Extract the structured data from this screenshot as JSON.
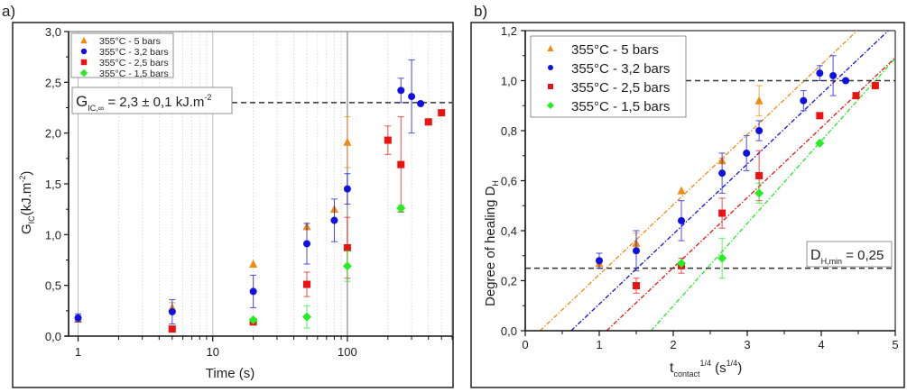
{
  "chart_data": [
    {
      "panel_label": "a)",
      "type": "scatter",
      "title": "",
      "xlabel": "Time (s)",
      "ylabel_main": "G",
      "ylabel_sub": "IC",
      "ylabel_rest": "(kJ.m",
      "ylabel_sup": "-2",
      "ylabel_end": ")",
      "xscale": "log",
      "xlim": [
        0.9,
        600
      ],
      "ylim": [
        0,
        3.0
      ],
      "xticks": [
        1,
        10,
        100
      ],
      "xtick_labels": [
        "1",
        "10",
        "100"
      ],
      "yticks": [
        0,
        0.5,
        1.0,
        1.5,
        2.0,
        2.5,
        3.0
      ],
      "ytick_labels": [
        "0,0",
        "0,5",
        "1,0",
        "1,5",
        "2,0",
        "2,5",
        "3,0"
      ],
      "grid": true,
      "legend_position": "top-left",
      "reference_line": {
        "y": 2.3,
        "label_main": "G",
        "label_sub": "IC,∞",
        "label_rest": " = 2,3 ± 0,1 kJ.m",
        "label_sup": "-2"
      },
      "series": [
        {
          "name": "355°C - 5 bars",
          "marker": "triangle",
          "color": "#f28a12",
          "points": [
            [
              1,
              0.17,
              0.02
            ],
            [
              5,
              0.28,
              0.05
            ],
            [
              20,
              0.71,
              0
            ],
            [
              50,
              1.08,
              0.03
            ],
            [
              80,
              1.25,
              0
            ],
            [
              100,
              1.91,
              0.25
            ]
          ]
        },
        {
          "name": "355°C - 3,2 bars",
          "marker": "circle",
          "color": "#1010e0",
          "points": [
            [
              1,
              0.18,
              0.04
            ],
            [
              5,
              0.24,
              0.12
            ],
            [
              20,
              0.44,
              0.16
            ],
            [
              50,
              0.91,
              0.2
            ],
            [
              80,
              1.14,
              0.21
            ],
            [
              100,
              1.45,
              0.15
            ],
            [
              250,
              2.42,
              0.12
            ],
            [
              300,
              2.36,
              0.36
            ],
            [
              350,
              2.29,
              0
            ]
          ]
        },
        {
          "name": "355°C - 2,5 bars",
          "marker": "square",
          "color": "#ee1111",
          "points": [
            [
              5,
              0.07,
              0
            ],
            [
              20,
              0.14,
              0
            ],
            [
              50,
              0.51,
              0.12
            ],
            [
              100,
              0.87,
              0.3
            ],
            [
              200,
              1.93,
              0.14
            ],
            [
              250,
              1.69,
              0.47
            ],
            [
              400,
              2.11,
              0
            ],
            [
              500,
              2.2,
              0
            ]
          ]
        },
        {
          "name": "355°C - 1,5 bars",
          "marker": "diamond",
          "color": "#22ee22",
          "points": [
            [
              20,
              0.16,
              0
            ],
            [
              50,
              0.19,
              0.11
            ],
            [
              100,
              0.69,
              0.15
            ],
            [
              250,
              1.26,
              0.03
            ]
          ]
        }
      ]
    },
    {
      "panel_label": "b)",
      "type": "scatter",
      "title": "",
      "xlabel_main": "t",
      "xlabel_sub": "contact",
      "xlabel_sup": "1/4",
      "xlabel_rest": " (s",
      "xlabel_sup2": "1/4",
      "xlabel_end": ")",
      "ylabel_main": "Degree of healing D",
      "ylabel_sub": "H",
      "xlim": [
        0,
        5
      ],
      "ylim": [
        0,
        1.2
      ],
      "xticks": [
        0,
        1,
        2,
        3,
        4,
        5
      ],
      "xtick_labels": [
        "0",
        "1",
        "2",
        "3",
        "4",
        "5"
      ],
      "yticks": [
        0,
        0.2,
        0.4,
        0.6,
        0.8,
        1.0,
        1.2
      ],
      "ytick_labels": [
        "0,0",
        "0,2",
        "0,4",
        "0,6",
        "0,8",
        "1,0",
        "1,2"
      ],
      "grid": false,
      "legend_position": "top-left",
      "reference_lines": [
        {
          "y": 1.0
        },
        {
          "y": 0.25,
          "label_main": "D",
          "label_sub": "H,min",
          "label_rest": " = 0,25"
        }
      ],
      "series": [
        {
          "name": "355°C - 5 bars",
          "marker": "triangle",
          "color": "#f28a12",
          "fit_line": {
            "x_intercept": 0.2,
            "slope": 0.28
          },
          "points": [
            [
              1.0,
              0.27,
              0.02
            ],
            [
              1.5,
              0.35,
              0.04
            ],
            [
              2.11,
              0.56,
              0
            ],
            [
              2.66,
              0.68,
              0.01
            ],
            [
              3.16,
              0.92,
              0.06
            ]
          ]
        },
        {
          "name": "355°C - 3,2 bars",
          "marker": "circle",
          "color": "#1010e0",
          "fit_line": {
            "x_intercept": 0.62,
            "slope": 0.28
          },
          "points": [
            [
              1.0,
              0.28,
              0.03
            ],
            [
              1.5,
              0.32,
              0.08
            ],
            [
              2.11,
              0.44,
              0.08
            ],
            [
              2.66,
              0.63,
              0.08
            ],
            [
              2.99,
              0.71,
              0.07
            ],
            [
              3.16,
              0.8,
              0.04
            ],
            [
              3.76,
              0.92,
              0.04
            ],
            [
              3.98,
              1.03,
              0.03
            ],
            [
              4.16,
              1.02,
              0.08
            ],
            [
              4.33,
              1.0,
              0
            ]
          ]
        },
        {
          "name": "355°C - 2,5 bars",
          "marker": "square",
          "color": "#ee1111",
          "fit_line": {
            "x_intercept": 1.1,
            "slope": 0.28
          },
          "points": [
            [
              1.5,
              0.18,
              0.03
            ],
            [
              2.11,
              0.26,
              0.03
            ],
            [
              2.66,
              0.47,
              0.06
            ],
            [
              3.16,
              0.62,
              0.1
            ],
            [
              3.98,
              0.86,
              0
            ],
            [
              4.47,
              0.94,
              0
            ],
            [
              4.73,
              0.98,
              0
            ]
          ]
        },
        {
          "name": "355°C - 1,5 bars",
          "marker": "diamond",
          "color": "#22ee22",
          "fit_line": {
            "x_intercept": 1.7,
            "slope": 0.33
          },
          "points": [
            [
              2.11,
              0.27,
              0
            ],
            [
              2.66,
              0.29,
              0.08
            ],
            [
              3.16,
              0.55,
              0.04
            ],
            [
              3.98,
              0.75,
              0
            ]
          ]
        }
      ]
    }
  ]
}
